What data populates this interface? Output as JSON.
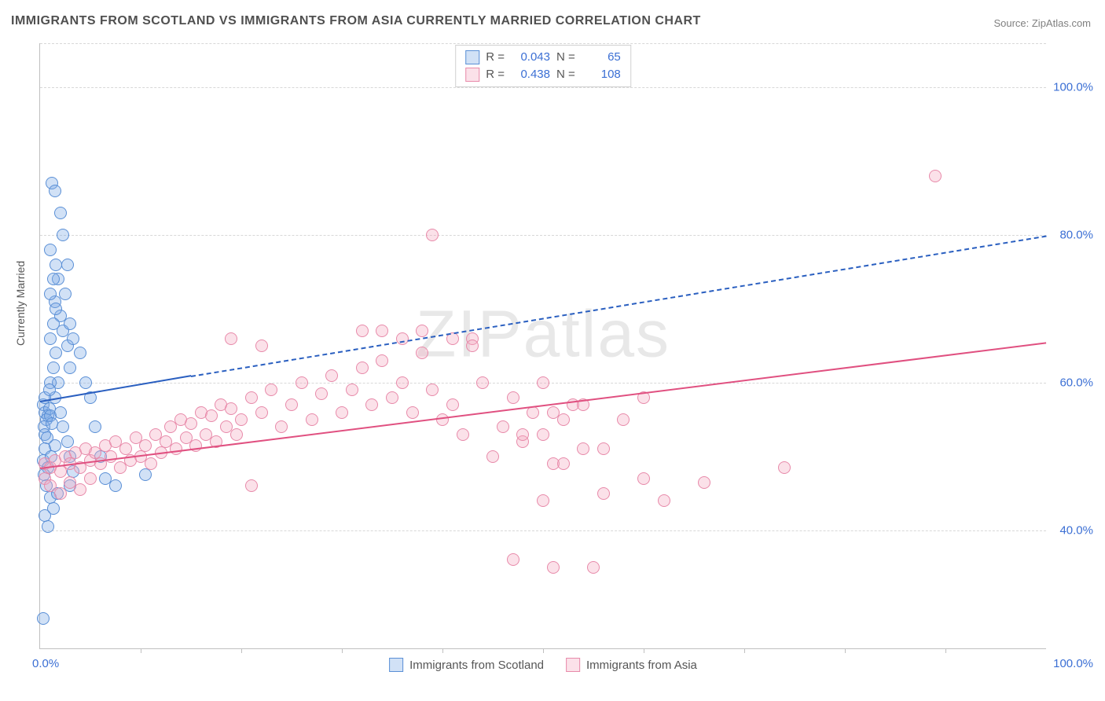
{
  "title": "IMMIGRANTS FROM SCOTLAND VS IMMIGRANTS FROM ASIA CURRENTLY MARRIED CORRELATION CHART",
  "source": "Source: ZipAtlas.com",
  "watermark": "ZIPatlas",
  "y_axis_label": "Currently Married",
  "chart": {
    "type": "scatter",
    "background_color": "#ffffff",
    "grid_color": "#d8d8d8",
    "axis_color": "#c0c0c0",
    "tick_label_color": "#3b6fd4",
    "tick_label_fontsize": 15,
    "title_fontsize": 16,
    "title_color": "#505050",
    "xlim": [
      0,
      100
    ],
    "ylim": [
      24,
      106
    ],
    "x_ticks_minor": [
      10,
      20,
      30,
      40,
      50,
      60,
      70,
      80,
      90
    ],
    "y_ticks": [
      40,
      60,
      80,
      100
    ],
    "y_tick_labels": [
      "40.0%",
      "60.0%",
      "80.0%",
      "100.0%"
    ],
    "x_origin_label": "0.0%",
    "x_max_label": "100.0%",
    "marker_radius": 8,
    "marker_border_width": 1.5,
    "marker_fill_opacity": 0.35,
    "series": [
      {
        "id": "scotland",
        "label": "Immigrants from Scotland",
        "color": "#7aa8e6",
        "border_color": "#5a8fd6",
        "trend_color": "#2a5fc0",
        "trend_width": 2.5,
        "trend_solid": {
          "x1": 0,
          "y1": 57.5,
          "x2": 15,
          "y2": 61
        },
        "trend_dash": {
          "x1": 15,
          "y1": 61,
          "x2": 100,
          "y2": 80
        },
        "stats": {
          "R": "0.043",
          "N": "65"
        },
        "points": [
          [
            0.3,
            57
          ],
          [
            0.5,
            56
          ],
          [
            0.8,
            55.5
          ],
          [
            0.6,
            55
          ],
          [
            0.4,
            54
          ],
          [
            0.5,
            53
          ],
          [
            0.9,
            56.5
          ],
          [
            1.0,
            55.5
          ],
          [
            1.2,
            54.5
          ],
          [
            0.7,
            52.5
          ],
          [
            0.5,
            51
          ],
          [
            0.3,
            49.5
          ],
          [
            0.8,
            48.5
          ],
          [
            1.1,
            50
          ],
          [
            1.5,
            51.5
          ],
          [
            0.4,
            47.5
          ],
          [
            0.6,
            46
          ],
          [
            1.0,
            44.5
          ],
          [
            1.3,
            43
          ],
          [
            1.7,
            45
          ],
          [
            0.5,
            42
          ],
          [
            0.8,
            40.5
          ],
          [
            0.3,
            28
          ],
          [
            1.2,
            87
          ],
          [
            1.5,
            86
          ],
          [
            2.0,
            83
          ],
          [
            2.3,
            80
          ],
          [
            2.7,
            76
          ],
          [
            2.5,
            72
          ],
          [
            1.8,
            74
          ],
          [
            1.5,
            71
          ],
          [
            2.0,
            69
          ],
          [
            2.3,
            67
          ],
          [
            2.7,
            65
          ],
          [
            3.0,
            68
          ],
          [
            3.3,
            66
          ],
          [
            3.0,
            62
          ],
          [
            1.8,
            60
          ],
          [
            1.5,
            58
          ],
          [
            2.0,
            56
          ],
          [
            2.3,
            54
          ],
          [
            2.7,
            52
          ],
          [
            3.0,
            50
          ],
          [
            3.3,
            48
          ],
          [
            3.0,
            46
          ],
          [
            1.0,
            60
          ],
          [
            1.3,
            62
          ],
          [
            1.6,
            64
          ],
          [
            1.0,
            66
          ],
          [
            1.3,
            68
          ],
          [
            1.6,
            70
          ],
          [
            1.0,
            72
          ],
          [
            1.3,
            74
          ],
          [
            1.6,
            76
          ],
          [
            1.0,
            78
          ],
          [
            4.0,
            64
          ],
          [
            4.5,
            60
          ],
          [
            5.0,
            58
          ],
          [
            5.5,
            54
          ],
          [
            6.0,
            50
          ],
          [
            6.5,
            47
          ],
          [
            7.5,
            46
          ],
          [
            10.5,
            47.5
          ],
          [
            0.5,
            58
          ],
          [
            0.9,
            59
          ]
        ]
      },
      {
        "id": "asia",
        "label": "Immigrants from Asia",
        "color": "#f4a8c0",
        "border_color": "#e88aaa",
        "trend_color": "#e05080",
        "trend_width": 2.5,
        "trend_solid": {
          "x1": 0,
          "y1": 48.5,
          "x2": 100,
          "y2": 65.5
        },
        "trend_dash": null,
        "stats": {
          "R": "0.438",
          "N": "108"
        },
        "points": [
          [
            0.5,
            49
          ],
          [
            1.0,
            48.5
          ],
          [
            1.5,
            49.5
          ],
          [
            2.0,
            48
          ],
          [
            2.5,
            50
          ],
          [
            3.0,
            49
          ],
          [
            3.5,
            50.5
          ],
          [
            4.0,
            48.5
          ],
          [
            4.5,
            51
          ],
          [
            5.0,
            49.5
          ],
          [
            5.5,
            50.5
          ],
          [
            6.0,
            49
          ],
          [
            6.5,
            51.5
          ],
          [
            7.0,
            50
          ],
          [
            7.5,
            52
          ],
          [
            8.0,
            48.5
          ],
          [
            8.5,
            51
          ],
          [
            9.0,
            49.5
          ],
          [
            9.5,
            52.5
          ],
          [
            10,
            50
          ],
          [
            10.5,
            51.5
          ],
          [
            11,
            49
          ],
          [
            11.5,
            53
          ],
          [
            12,
            50.5
          ],
          [
            12.5,
            52
          ],
          [
            13,
            54
          ],
          [
            13.5,
            51
          ],
          [
            14,
            55
          ],
          [
            14.5,
            52.5
          ],
          [
            15,
            54.5
          ],
          [
            15.5,
            51.5
          ],
          [
            16,
            56
          ],
          [
            16.5,
            53
          ],
          [
            17,
            55.5
          ],
          [
            17.5,
            52
          ],
          [
            18,
            57
          ],
          [
            18.5,
            54
          ],
          [
            19,
            56.5
          ],
          [
            19.5,
            53
          ],
          [
            20,
            55
          ],
          [
            21,
            58
          ],
          [
            22,
            56
          ],
          [
            23,
            59
          ],
          [
            24,
            54
          ],
          [
            25,
            57
          ],
          [
            26,
            60
          ],
          [
            27,
            55
          ],
          [
            28,
            58.5
          ],
          [
            29,
            61
          ],
          [
            30,
            56
          ],
          [
            31,
            59
          ],
          [
            32,
            62
          ],
          [
            33,
            57
          ],
          [
            34,
            63
          ],
          [
            35,
            58
          ],
          [
            36,
            60
          ],
          [
            37,
            56
          ],
          [
            38,
            64
          ],
          [
            39,
            59
          ],
          [
            40,
            55
          ],
          [
            41,
            57
          ],
          [
            42,
            53
          ],
          [
            43,
            66
          ],
          [
            44,
            60
          ],
          [
            45,
            50
          ],
          [
            46,
            54
          ],
          [
            47,
            58
          ],
          [
            48,
            52
          ],
          [
            49,
            56
          ],
          [
            50,
            60
          ],
          [
            51,
            49
          ],
          [
            52,
            55
          ],
          [
            53,
            57
          ],
          [
            54,
            51
          ],
          [
            39,
            80
          ],
          [
            32,
            67
          ],
          [
            34,
            67
          ],
          [
            36,
            66
          ],
          [
            41,
            66
          ],
          [
            38,
            67
          ],
          [
            43,
            65
          ],
          [
            21,
            46
          ],
          [
            50,
            53
          ],
          [
            51,
            56
          ],
          [
            52,
            49
          ],
          [
            54,
            57
          ],
          [
            56,
            51
          ],
          [
            58,
            55
          ],
          [
            60,
            58
          ],
          [
            50,
            44
          ],
          [
            51,
            35
          ],
          [
            55,
            35
          ],
          [
            56,
            45
          ],
          [
            60,
            47
          ],
          [
            62,
            44
          ],
          [
            66,
            46.5
          ],
          [
            47,
            36
          ],
          [
            48,
            53
          ],
          [
            19,
            66
          ],
          [
            22,
            65
          ],
          [
            74,
            48.5
          ],
          [
            0.5,
            47
          ],
          [
            1.0,
            46
          ],
          [
            2.0,
            45
          ],
          [
            3.0,
            46.5
          ],
          [
            4.0,
            45.5
          ],
          [
            5.0,
            47
          ],
          [
            89,
            88
          ]
        ]
      }
    ]
  },
  "legend_top": {
    "R_label": "R =",
    "N_label": "N ="
  }
}
